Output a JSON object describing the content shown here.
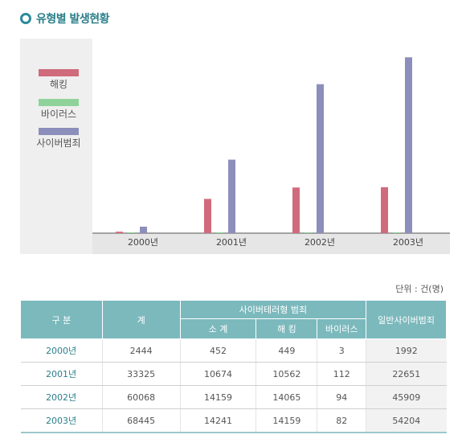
{
  "header": {
    "title": "유형별 발생현황"
  },
  "chart_data": {
    "type": "bar",
    "categories": [
      "2000년",
      "2001년",
      "2002년",
      "2003년"
    ],
    "series": [
      {
        "name": "해킹",
        "values": [
          449,
          10562,
          14065,
          14159
        ],
        "color": "#cf6b7c"
      },
      {
        "name": "바이러스",
        "values": [
          3,
          112,
          94,
          82
        ],
        "color": "#8fd39a"
      },
      {
        "name": "사이버범죄",
        "values": [
          1992,
          22651,
          45909,
          54204
        ],
        "color": "#8c8fbb"
      }
    ],
    "ylim": [
      0,
      56000
    ],
    "legend": "left"
  },
  "unit_label": "단위 : 건(명)",
  "table": {
    "headers": {
      "category": "구 분",
      "total": "계",
      "group": "사이버테러형 범죄",
      "subtotal": "소 계",
      "hacking": "해 킹",
      "virus": "바이러스",
      "general": "일반사이버범죄"
    },
    "rows": [
      {
        "year": "2000년",
        "total": "2444",
        "subtotal": "452",
        "hacking": "449",
        "virus": "3",
        "general": "1992"
      },
      {
        "year": "2001년",
        "total": "33325",
        "subtotal": "10674",
        "hacking": "10562",
        "virus": "112",
        "general": "22651"
      },
      {
        "year": "2002년",
        "total": "60068",
        "subtotal": "14159",
        "hacking": "14065",
        "virus": "94",
        "general": "45909"
      },
      {
        "year": "2003년",
        "total": "68445",
        "subtotal": "14241",
        "hacking": "14159",
        "virus": "82",
        "general": "54204"
      }
    ]
  }
}
